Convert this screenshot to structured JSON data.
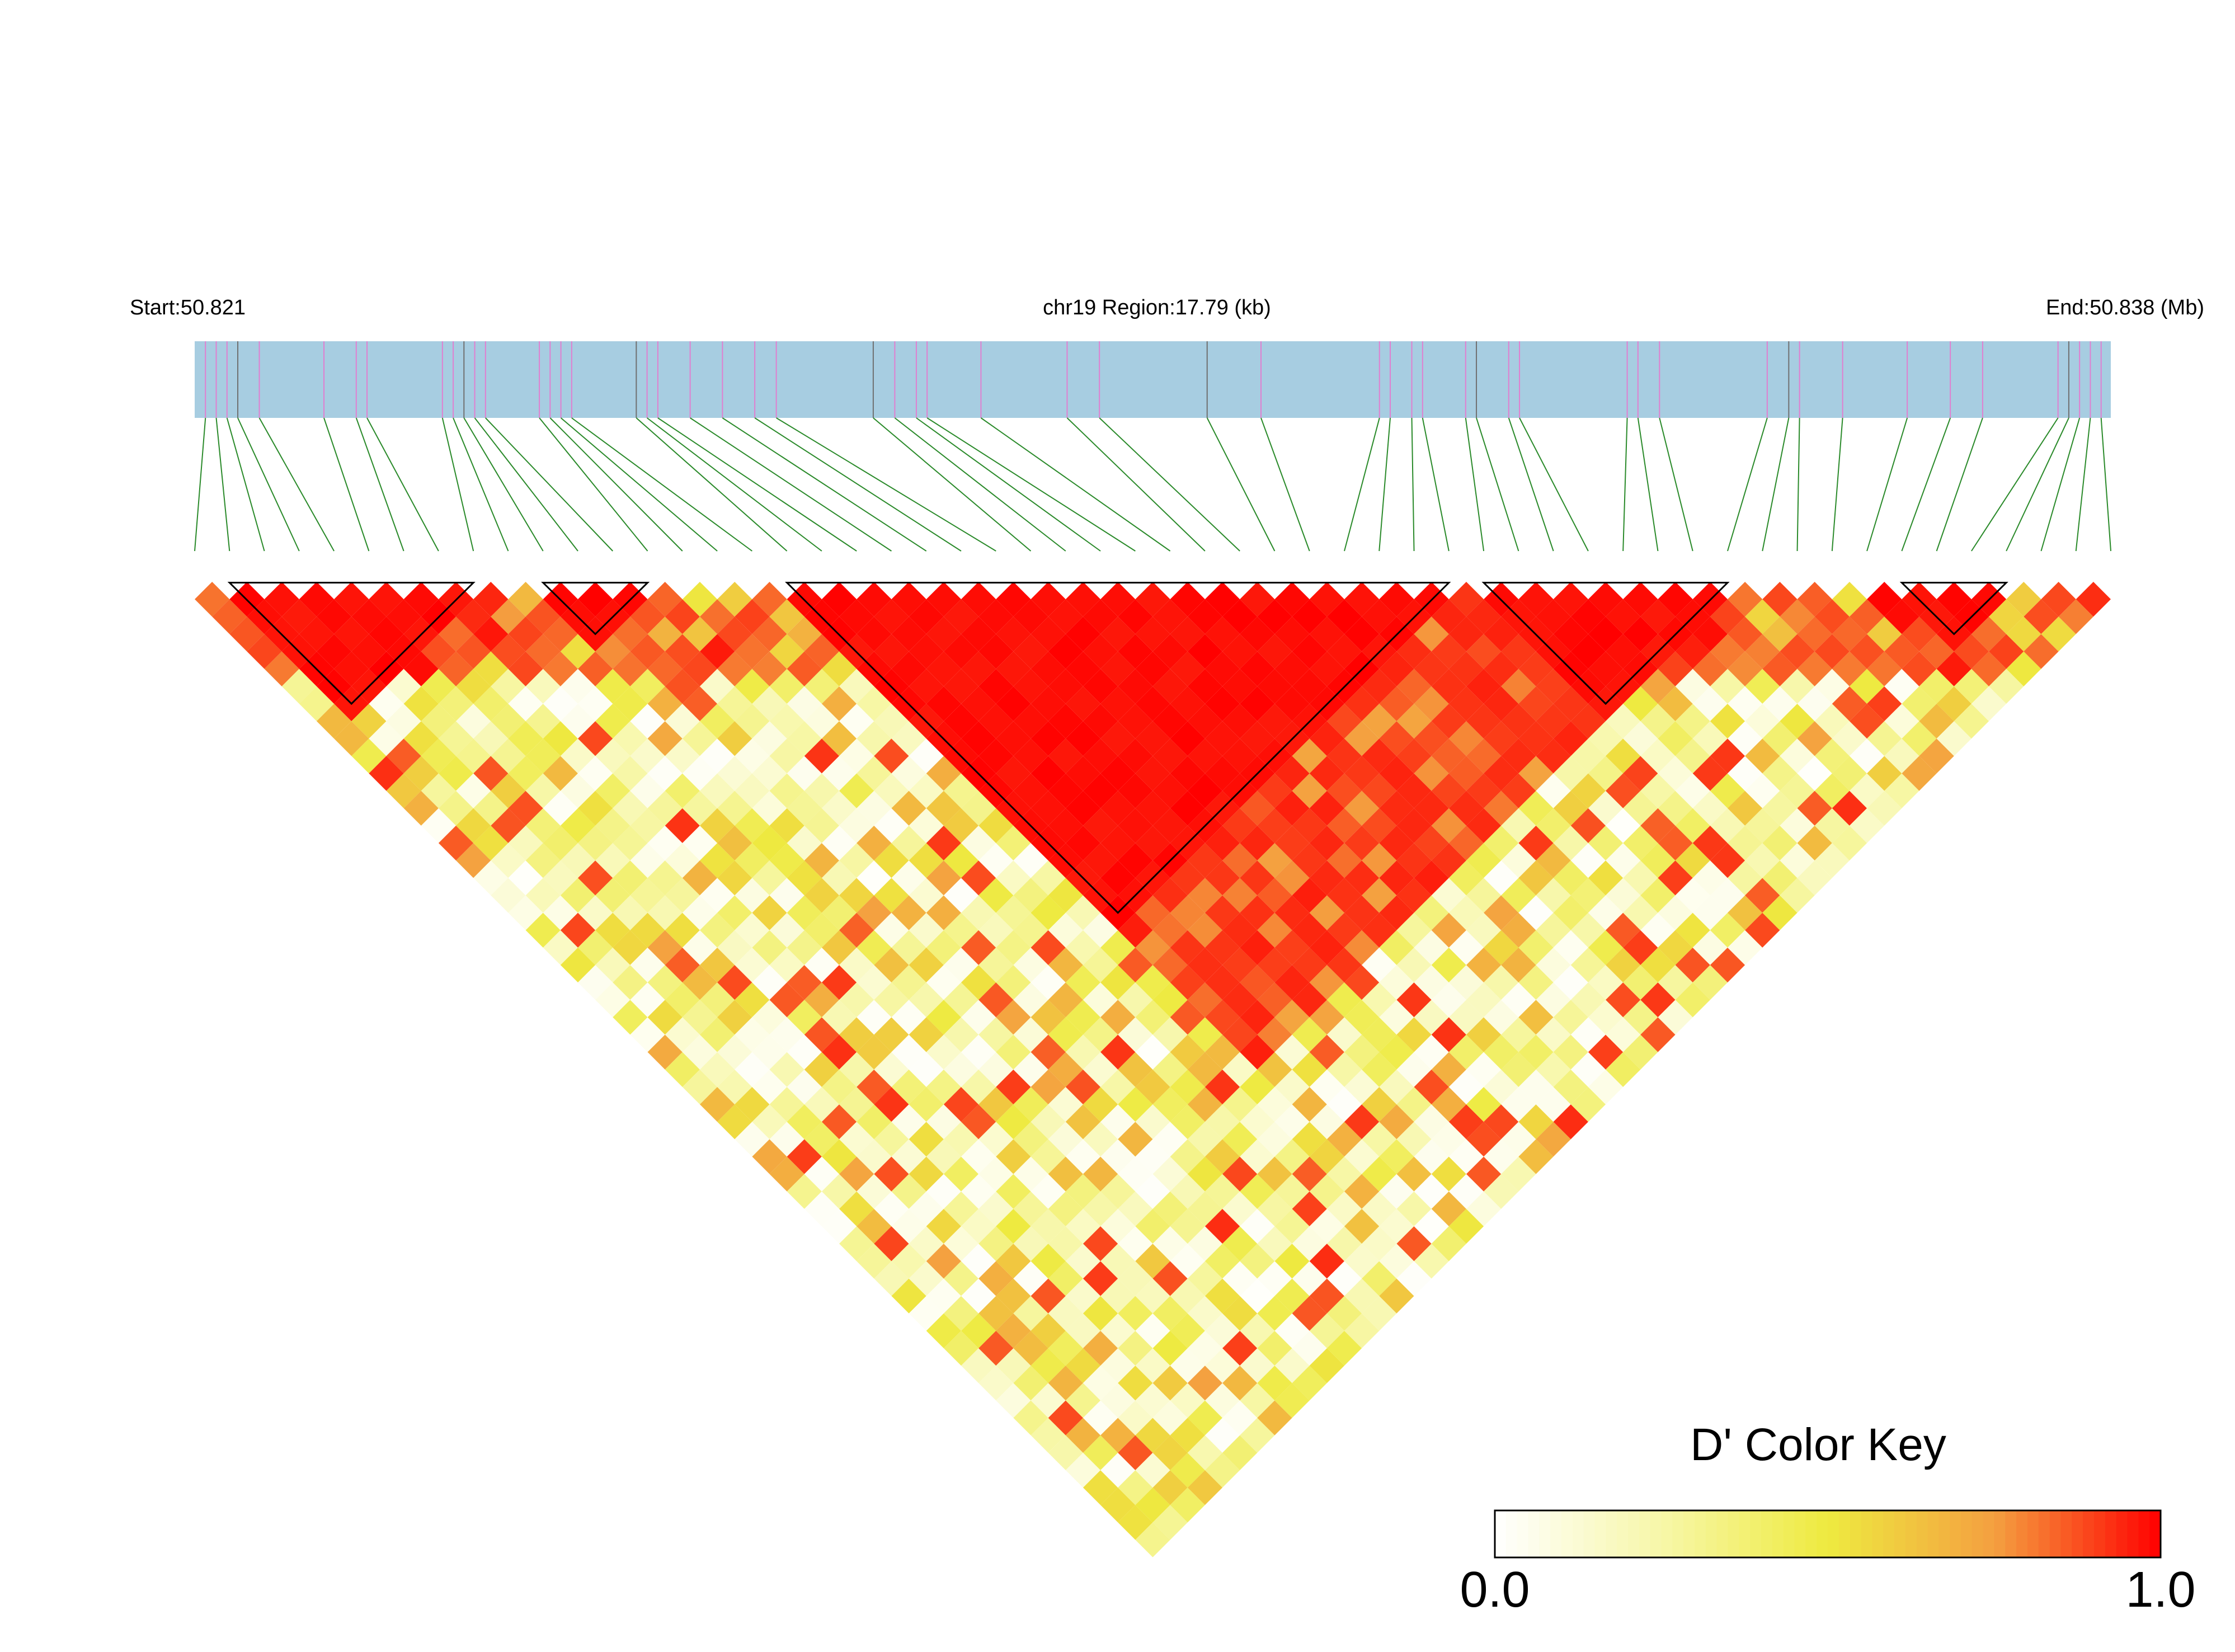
{
  "chart_data": {
    "type": "heatmap",
    "subtype": "linkage-disequilibrium triangle",
    "header": {
      "start_label": "Start:50.821",
      "region_label": "chr19 Region:17.79 (kb)",
      "end_label": "End:50.838 (Mb)"
    },
    "start_mb": 50.821,
    "end_mb": 50.838,
    "region_kb": 17.79,
    "n_snps": 56,
    "snp_positions_kb": [
      0.1,
      2.3,
      2.7,
      3.4,
      4.3,
      5.2,
      6.7,
      9.4,
      11.1,
      11.8,
      11.9,
      12.3,
      14.8,
      16.6,
      17.4,
      17.6,
      0.3,
      1.5,
      2.5,
      3.3,
      4.6,
      6.3,
      6.8,
      9.9,
      11.3,
      12.2,
      13.3,
      14.6,
      15.3,
      17.5,
      17.7,
      0.2,
      1.2,
      2.4,
      3.2,
      4.1,
      4.2,
      5.4,
      7.3,
      11.0,
      11.4,
      13.4,
      13.6,
      14.9,
      15.9,
      16.3,
      17.3,
      0.4,
      1.6,
      2.6,
      3.5,
      4.9,
      6.5,
      8.1,
      8.4,
      0.6
    ],
    "ld_blocks": [
      {
        "from": 1,
        "to": 8
      },
      {
        "from": 10,
        "to": 13
      },
      {
        "from": 17,
        "to": 36
      },
      {
        "from": 37,
        "to": 44
      },
      {
        "from": 49,
        "to": 52
      }
    ],
    "color_key": {
      "title": "D' Color Key",
      "min_label": "0.0",
      "max_label": "1.0",
      "min": 0.0,
      "max": 1.0,
      "colors": [
        "#ffffff",
        "#f7f7a8",
        "#eeea40",
        "#f4a040",
        "#ff0000"
      ]
    },
    "colors": {
      "bar_fill": "#a7cde1",
      "snp_tick_major": "#e07fd0",
      "snp_tick_minor": "#707070",
      "connector": "#2a8a2a",
      "block_outline": "#000000"
    }
  }
}
